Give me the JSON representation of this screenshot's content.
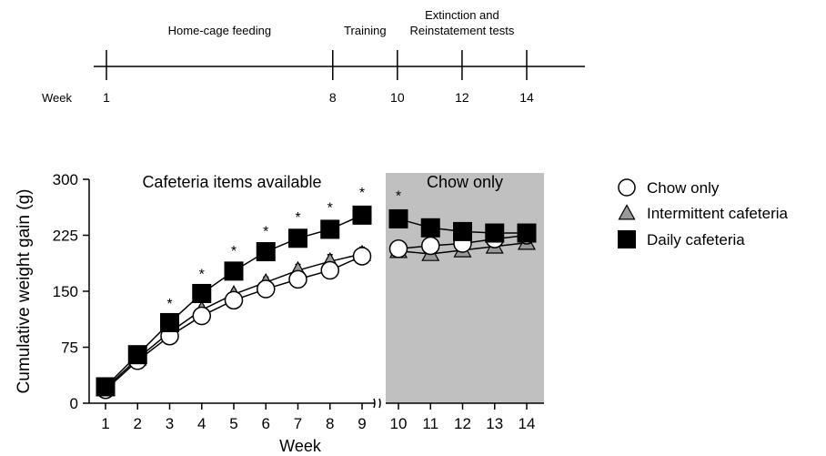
{
  "timeline": {
    "week_label": "Week",
    "ticks": [
      1,
      8,
      10,
      12,
      14
    ],
    "tick_labels": [
      "1",
      "8",
      "10",
      "12",
      "14"
    ],
    "phases": [
      {
        "lines": [
          "Home-cage feeding"
        ],
        "from": 1,
        "to": 8
      },
      {
        "lines": [
          "Training"
        ],
        "from": 8,
        "to": 10
      },
      {
        "lines": [
          "Extinction and",
          "Reinstatement tests"
        ],
        "from": 10,
        "to": 14
      }
    ]
  },
  "chart_data": {
    "type": "line",
    "xlabel": "Week",
    "ylabel": "Cumulative weight gain (g)",
    "x": [
      1,
      2,
      3,
      4,
      5,
      6,
      7,
      8,
      9,
      10,
      11,
      12,
      13,
      14
    ],
    "x_tick_labels": [
      "1",
      "2",
      "3",
      "4",
      "5",
      "6",
      "7",
      "8",
      "9",
      "10",
      "11",
      "12",
      "13",
      "14"
    ],
    "ylim": [
      0,
      300
    ],
    "y_ticks": [
      0,
      75,
      150,
      225,
      300
    ],
    "y_tick_labels": [
      "0",
      "75",
      "150",
      "225",
      "300"
    ],
    "axis_break_between": [
      9,
      10
    ],
    "grid": false,
    "legend_position": "right",
    "regions": [
      {
        "label": "Cafeteria items available",
        "from": 1,
        "to": 9,
        "shaded": false
      },
      {
        "label": "Chow only",
        "from": 10,
        "to": 14,
        "shaded": true,
        "color": "#c0c0c0"
      }
    ],
    "series": [
      {
        "name": "Chow only",
        "marker": "circle",
        "fill": "#ffffff",
        "values": [
          18,
          57,
          90,
          117,
          138,
          153,
          166,
          178,
          197,
          207,
          211,
          214,
          220,
          225
        ],
        "error": [
          2,
          3,
          4,
          5,
          5,
          6,
          7,
          7,
          7,
          7,
          7,
          7,
          7,
          7
        ]
      },
      {
        "name": "Intermittent cafeteria",
        "marker": "triangle",
        "fill": "#999999",
        "values": [
          20,
          60,
          95,
          125,
          146,
          162,
          178,
          190,
          200,
          204,
          200,
          205,
          210,
          215
        ],
        "error": [
          2,
          3,
          4,
          6,
          6,
          7,
          8,
          9,
          9,
          9,
          8,
          8,
          8,
          8
        ]
      },
      {
        "name": "Daily cafeteria",
        "marker": "square",
        "fill": "#000000",
        "values": [
          22,
          65,
          108,
          147,
          177,
          203,
          221,
          233,
          252,
          247,
          235,
          230,
          228,
          228
        ],
        "error": [
          2,
          3,
          4,
          5,
          6,
          6,
          7,
          8,
          9,
          10,
          10,
          10,
          9,
          9
        ]
      }
    ],
    "significance": {
      "symbol": "*",
      "weeks": [
        3,
        4,
        5,
        6,
        7,
        8,
        9,
        10
      ]
    }
  }
}
